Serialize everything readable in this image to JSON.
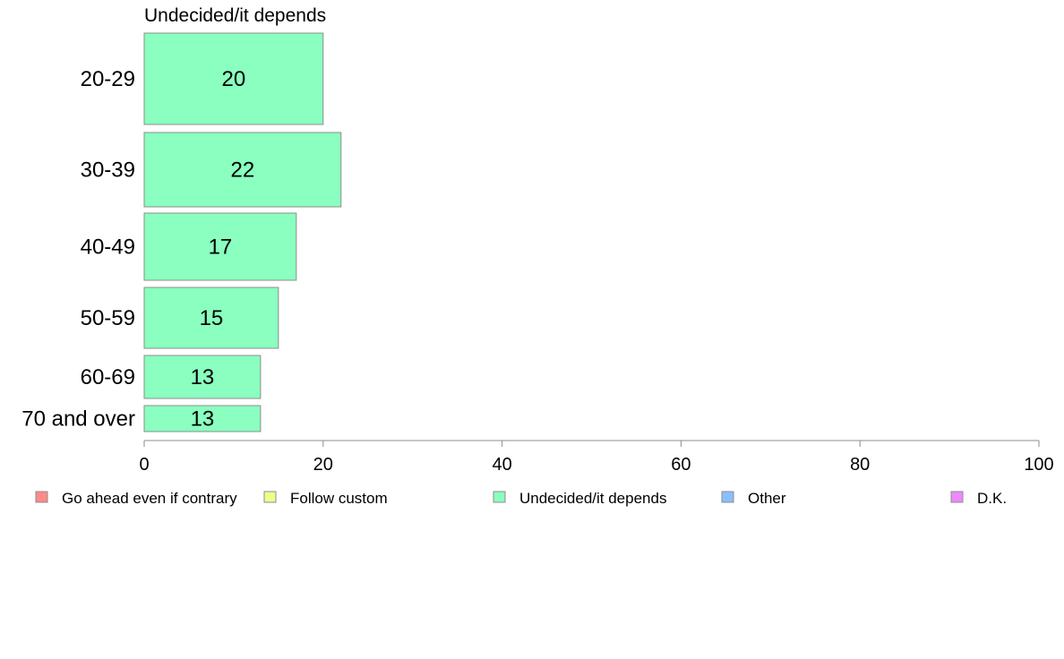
{
  "chart_data": {
    "type": "bar",
    "orientation": "horizontal",
    "title": "Undecided/it depends",
    "categories": [
      "20-29",
      "30-39",
      "40-49",
      "50-59",
      "60-69",
      "70 and over"
    ],
    "series": [
      {
        "name": "Undecided/it depends",
        "values": [
          20,
          22,
          17,
          15,
          13,
          13
        ],
        "color": "#8affbf"
      }
    ],
    "value_labels": [
      "20",
      "22",
      "17",
      "15",
      "13",
      "13"
    ],
    "xlim": [
      0,
      100
    ],
    "x_ticks": [
      0,
      20,
      40,
      60,
      80,
      100
    ],
    "x_tick_labels": [
      "0",
      "20",
      "40",
      "60",
      "80",
      "100"
    ],
    "grid": false,
    "legend_position": "bottom",
    "legend": [
      {
        "label": "Go ahead even if contrary",
        "color": "#ff8a8a"
      },
      {
        "label": "Follow custom",
        "color": "#ecff8a"
      },
      {
        "label": "Undecided/it depends",
        "color": "#8affbf"
      },
      {
        "label": "Other",
        "color": "#8abfff"
      },
      {
        "label": "D.K.",
        "color": "#ec8aff"
      }
    ]
  }
}
